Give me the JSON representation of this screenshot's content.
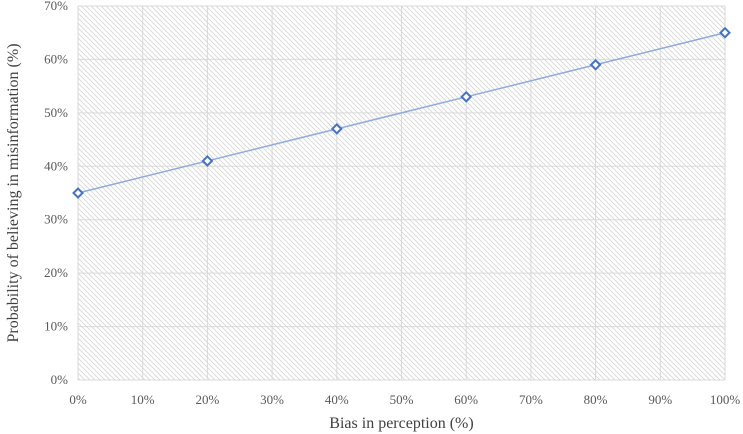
{
  "chart_data": {
    "type": "line",
    "xlabel": "Bias in perception (%)",
    "ylabel": "Probability of believing in misinformation (%)",
    "x_ticks": [
      "0%",
      "10%",
      "20%",
      "30%",
      "40%",
      "50%",
      "60%",
      "70%",
      "80%",
      "90%",
      "100%"
    ],
    "y_ticks": [
      "0%",
      "10%",
      "20%",
      "30%",
      "40%",
      "50%",
      "60%",
      "70%"
    ],
    "xlim": [
      0,
      100
    ],
    "ylim": [
      0,
      70
    ],
    "grid": true,
    "legend": "none",
    "series": [
      {
        "x": [
          0,
          20,
          40,
          60,
          80,
          100
        ],
        "values": [
          35,
          41,
          47,
          53,
          59,
          65
        ],
        "line_color": "#8faadc",
        "marker_color": "#4472c4",
        "marker": "diamond"
      }
    ]
  }
}
